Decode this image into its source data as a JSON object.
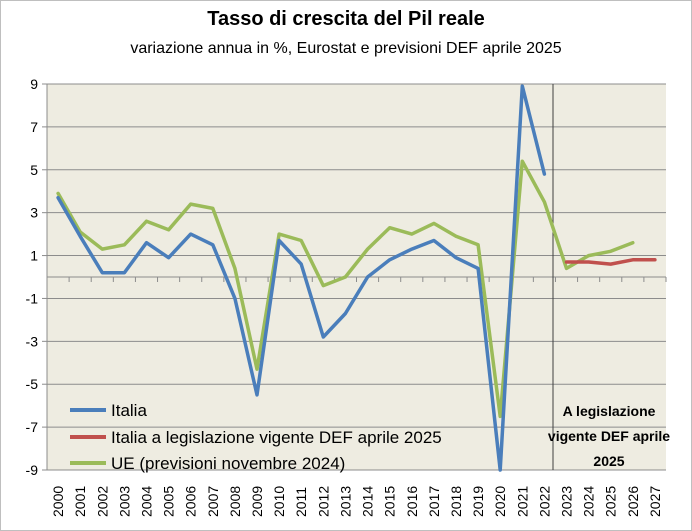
{
  "chart_data": {
    "type": "line",
    "title": "Tasso di crescita del Pil reale",
    "subtitle": "variazione annua in %, Eurostat e previsioni DEF aprile 2025",
    "ylim": [
      -9,
      9
    ],
    "yticks": [
      "9",
      "7",
      "5",
      "3",
      "1",
      "-1",
      "-3",
      "-5",
      "-7",
      "-9"
    ],
    "categories": [
      "2000",
      "2001",
      "2002",
      "2003",
      "2004",
      "2005",
      "2006",
      "2007",
      "2008",
      "2009",
      "2010",
      "2011",
      "2012",
      "2013",
      "2014",
      "2015",
      "2016",
      "2017",
      "2018",
      "2019",
      "2020",
      "2021",
      "2022",
      "2023",
      "2024",
      "2025",
      "2026",
      "2027"
    ],
    "series": [
      {
        "name": "Italia",
        "color": "#4a7ebb",
        "values": [
          3.7,
          1.9,
          0.2,
          0.2,
          1.6,
          0.9,
          2.0,
          1.5,
          -1.0,
          -5.5,
          1.7,
          0.6,
          -2.8,
          -1.7,
          0.0,
          0.8,
          1.3,
          1.7,
          0.9,
          0.4,
          -9.0,
          8.9,
          4.8,
          null,
          null,
          null,
          null,
          null
        ]
      },
      {
        "name": "Italia a legislazione vigente DEF aprile 2025",
        "color": "#c0504d",
        "values": [
          null,
          null,
          null,
          null,
          null,
          null,
          null,
          null,
          null,
          null,
          null,
          null,
          null,
          null,
          null,
          null,
          null,
          null,
          null,
          null,
          null,
          null,
          null,
          0.7,
          0.7,
          0.6,
          0.8,
          0.8
        ]
      },
      {
        "name": "UE (previsioni novembre 2024)",
        "color": "#9bbb59",
        "values": [
          3.9,
          2.1,
          1.3,
          1.5,
          2.6,
          2.2,
          3.4,
          3.2,
          0.4,
          -4.3,
          2.0,
          1.7,
          -0.4,
          0.0,
          1.3,
          2.3,
          2.0,
          2.5,
          1.9,
          1.5,
          -6.5,
          5.4,
          3.5,
          0.4,
          1.0,
          1.2,
          1.6,
          null
        ]
      }
    ],
    "legend": "bottom-left",
    "grid": true,
    "annotation": [
      "A legislazione",
      "vigente DEF aprile",
      "2025"
    ]
  }
}
